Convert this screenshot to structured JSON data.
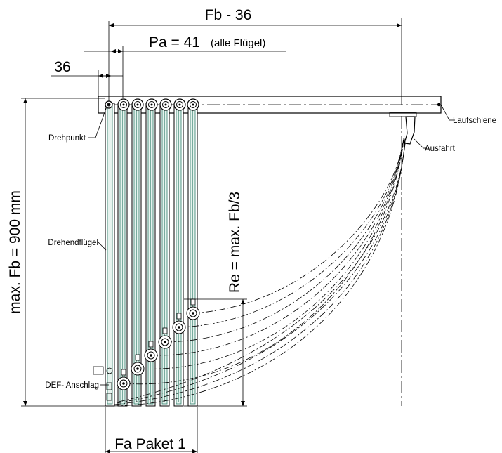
{
  "dimensions": {
    "top_width": "Fb - 36",
    "pa_main": "Pa = 41",
    "pa_suffix": "(alle Flügel)",
    "offset": "36",
    "max_height": "max. Fb = 900 mm",
    "re": "Re = max. Fb/3",
    "fa_paket": "Fa Paket 1"
  },
  "labels": {
    "laufschiene": "Laufschlene",
    "ausfahrt": "Ausfahrt",
    "drehpunkt": "Drehpunkt",
    "drehendfluegel": "Drehendflügel",
    "def_anschlag": "DEF- Anschlag"
  },
  "colors": {
    "line": "#000000",
    "glass": "#2e7d6a",
    "glass_fill": "#e6f3ee"
  }
}
